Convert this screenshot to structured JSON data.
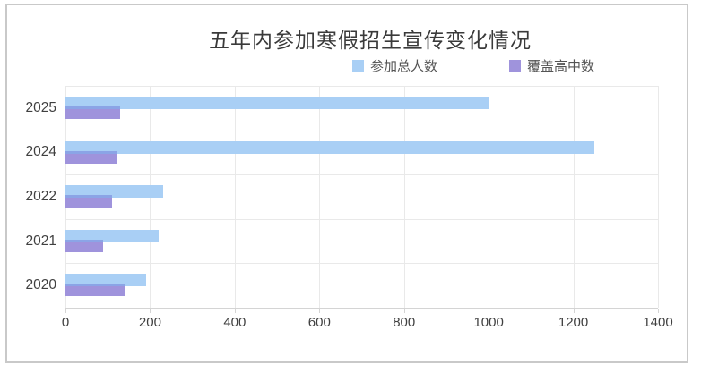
{
  "chart_data": {
    "type": "bar",
    "orientation": "horizontal",
    "title": "五年内参加寒假招生宣传变化情况",
    "categories": [
      "2025",
      "2024",
      "2022",
      "2021",
      "2020"
    ],
    "series": [
      {
        "name": "参加总人数",
        "color": "#A9CFF5",
        "values": [
          1000,
          1250,
          230,
          220,
          190
        ]
      },
      {
        "name": "覆盖高中数",
        "color": "#9F93DC",
        "values": [
          130,
          120,
          110,
          90,
          140
        ]
      }
    ],
    "overlap_color": "#8BA4E6",
    "xlabel": "",
    "ylabel": "",
    "xlim": [
      0,
      1400
    ],
    "x_ticks": [
      0,
      200,
      400,
      600,
      800,
      1000,
      1200,
      1400
    ],
    "grid": true,
    "legend_position": "top"
  },
  "frame": {
    "border_color": "#C9C9C9",
    "gridline_color": "#E9E9E9",
    "axis_color": "#D4D4D4"
  }
}
